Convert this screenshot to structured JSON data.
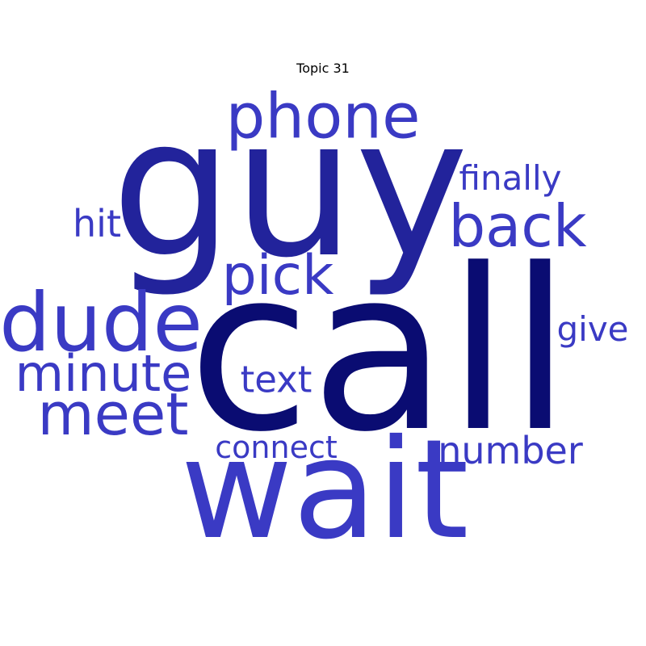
{
  "title": "Topic 31",
  "colors": {
    "darkest": "#0a0c72",
    "dark": "#22239b",
    "medium": "#3a3ac4"
  },
  "words": [
    {
      "text": "call",
      "color": "#0a0c72"
    },
    {
      "text": "guy",
      "color": "#22239b"
    },
    {
      "text": "wait",
      "color": "#3a3ac4"
    },
    {
      "text": "phone",
      "color": "#3a3ac4"
    },
    {
      "text": "dude",
      "color": "#3a3ac4"
    },
    {
      "text": "back",
      "color": "#3a3ac4"
    },
    {
      "text": "pick",
      "color": "#3a3ac4"
    },
    {
      "text": "meet",
      "color": "#3a3ac4"
    },
    {
      "text": "minute",
      "color": "#3a3ac4"
    },
    {
      "text": "finally",
      "color": "#3a3ac4"
    },
    {
      "text": "number",
      "color": "#3a3ac4"
    },
    {
      "text": "text",
      "color": "#3a3ac4"
    },
    {
      "text": "hit",
      "color": "#3a3ac4"
    },
    {
      "text": "give",
      "color": "#3a3ac4"
    },
    {
      "text": "connect",
      "color": "#3a3ac4"
    }
  ]
}
